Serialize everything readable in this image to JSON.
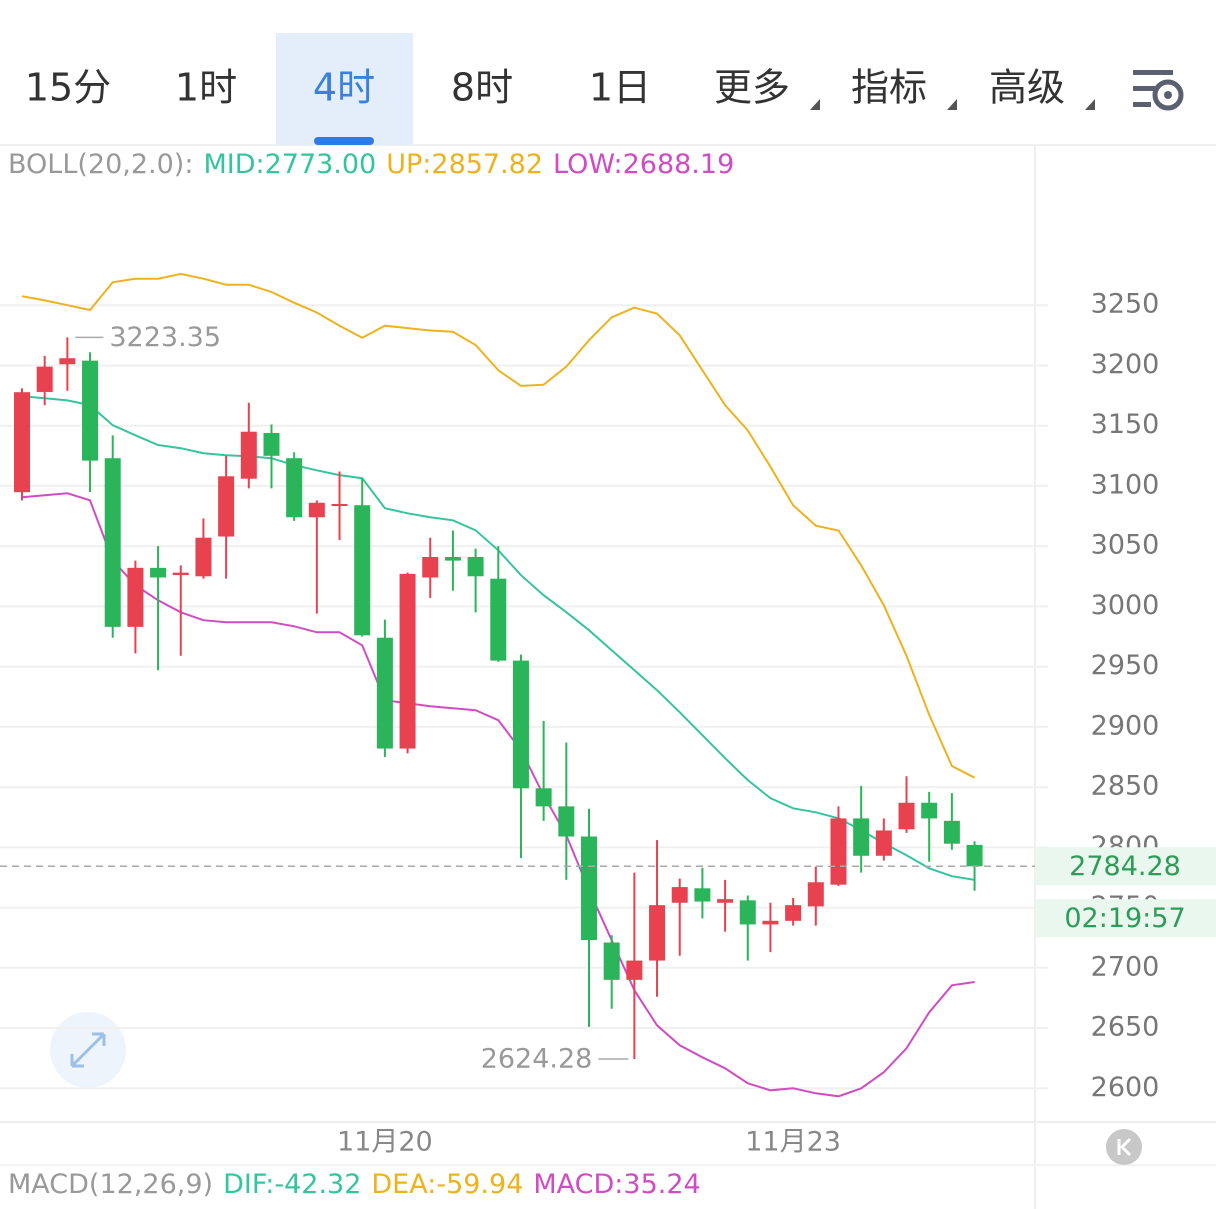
{
  "tabs": [
    "15分",
    "1时",
    "4时",
    "8时",
    "1日",
    "更多",
    "指标",
    "高级"
  ],
  "active_tab_index": 2,
  "chart_data": {
    "type": "candlestick",
    "indicator_label": "BOLL(20,2.0):",
    "categories": [
      null,
      null,
      null,
      null,
      null,
      null,
      null,
      null,
      null,
      null,
      null,
      null,
      null,
      null,
      null,
      null,
      "11月20",
      null,
      null,
      null,
      null,
      null,
      null,
      null,
      null,
      null,
      null,
      null,
      null,
      null,
      null,
      null,
      null,
      null,
      "11月23",
      null,
      null,
      null,
      null,
      null,
      null,
      null,
      null
    ],
    "open": [
      3094.8,
      3178,
      3201,
      3204,
      3123,
      2983,
      3032,
      3026,
      3025,
      3058,
      3106,
      3144,
      3123,
      3074,
      3084,
      3084,
      2974,
      2882,
      3024,
      3041,
      3041,
      3023,
      2955,
      2849,
      2834,
      2809,
      2721,
      2690,
      2706,
      2754,
      2766,
      2754,
      2756,
      2736,
      2739,
      2751,
      2769,
      2824,
      2793,
      2815,
      2837,
      2822,
      2802
    ],
    "high": [
      3181,
      3208,
      3223.35,
      3211,
      3142,
      3038,
      3050,
      3034,
      3073,
      3125,
      3169,
      3151,
      3128,
      3088,
      3112,
      3106,
      2989,
      3028,
      3057,
      3063,
      3048,
      3050,
      2960,
      2905,
      2887,
      2832,
      2727,
      2779,
      2806,
      2774,
      2783,
      2773,
      2760,
      2754,
      2758,
      2784,
      2834,
      2851,
      2824,
      2859,
      2846,
      2845,
      2805
    ],
    "low": [
      3088,
      3167,
      3179,
      3095,
      2974,
      2961,
      2947,
      2959,
      3023,
      3023,
      3098,
      3098,
      3071,
      2994,
      3055,
      2975,
      2875,
      2878,
      3007,
      3013,
      2995,
      2954,
      2791,
      2822,
      2773,
      2651,
      2666,
      2624.28,
      2676,
      2710,
      2741,
      2730,
      2706,
      2713,
      2735,
      2735,
      2768,
      2779,
      2789,
      2812,
      2788,
      2798,
      2764
    ],
    "close": [
      3177.8,
      3199,
      3206,
      3121,
      2983,
      3032,
      3024,
      3028,
      3057,
      3108,
      3145,
      3125,
      3074,
      3086,
      3085,
      2976,
      2882,
      3027,
      3041,
      3038,
      3025,
      2955,
      2849,
      2834,
      2809,
      2723,
      2690,
      2706,
      2752,
      2767,
      2755,
      2757,
      2736,
      2739,
      2752,
      2771,
      2824,
      2793,
      2814,
      2837,
      2824,
      2803,
      2784.28
    ],
    "up_color": "#e8414f",
    "down_color": "#2bb55a",
    "bands": [
      {
        "label": "MID:2773.00",
        "color": "#34c4a0",
        "values": [
          3174.5,
          3172.8,
          3171,
          3167,
          3150.4,
          3142,
          3134,
          3131.3,
          3127.2,
          3125.5,
          3124.6,
          3123,
          3117.2,
          3113,
          3109,
          3106.4,
          3081.5,
          3077.3,
          3074,
          3071.5,
          3063.2,
          3046.6,
          3025.9,
          3009.3,
          2995.2,
          2980.2,
          2963.6,
          2947,
          2930.4,
          2912.2,
          2893.1,
          2874,
          2855.8,
          2840.8,
          2832.4,
          2829.1,
          2824.1,
          2814.2,
          2803.4,
          2793.4,
          2782.6,
          2776,
          2773
        ]
      },
      {
        "label": "UP:2857.82",
        "color": "#eeb21e",
        "values": [
          3257.5,
          3254,
          3250,
          3246,
          3269,
          3272,
          3272,
          3276,
          3272,
          3267,
          3267,
          3261,
          3252,
          3244,
          3233,
          3223,
          3233,
          3231,
          3229,
          3228,
          3217,
          3196,
          3183,
          3184,
          3199,
          3221,
          3240,
          3248,
          3243,
          3225,
          3196,
          3167,
          3146,
          3116,
          3084,
          3067,
          3063,
          3034,
          3001,
          2959,
          2910,
          2867.5,
          2857.82
        ]
      },
      {
        "label": "LOW:2688.19",
        "color": "#d04cc4",
        "values": [
          3090.6,
          3092.3,
          3093.9,
          3088.1,
          3038.3,
          3017.6,
          3005.1,
          2995.1,
          2988.5,
          2986.8,
          2986.8,
          2986.8,
          2983.5,
          2978.5,
          2978.5,
          2967.7,
          2922.1,
          2919.6,
          2917.1,
          2915.4,
          2913.8,
          2905.5,
          2880.6,
          2843.2,
          2810,
          2764.4,
          2722.9,
          2681.3,
          2652.3,
          2635.7,
          2625.7,
          2616.6,
          2604.1,
          2598.3,
          2600,
          2595.8,
          2593.3,
          2600,
          2613.3,
          2633.2,
          2663.1,
          2685.5,
          2688.19
        ]
      }
    ],
    "max_label": "3223.35",
    "min_label": "2624.28",
    "last_price": 2784.28,
    "countdown": "02:19:57",
    "ylim": [
      2572,
      3383
    ],
    "yticks": [
      2600,
      2650,
      2700,
      2750,
      2800,
      2850,
      2900,
      2950,
      3000,
      3050,
      3100,
      3150,
      3200,
      3250
    ],
    "grid": true
  },
  "macd_legend": {
    "title": "MACD(12,26,9)",
    "items": [
      {
        "label": "DIF:-42.32",
        "color": "#34c4a0"
      },
      {
        "label": "DEA:-59.94",
        "color": "#eeb21e"
      },
      {
        "label": "MACD:35.24",
        "color": "#d04cc4"
      }
    ]
  }
}
